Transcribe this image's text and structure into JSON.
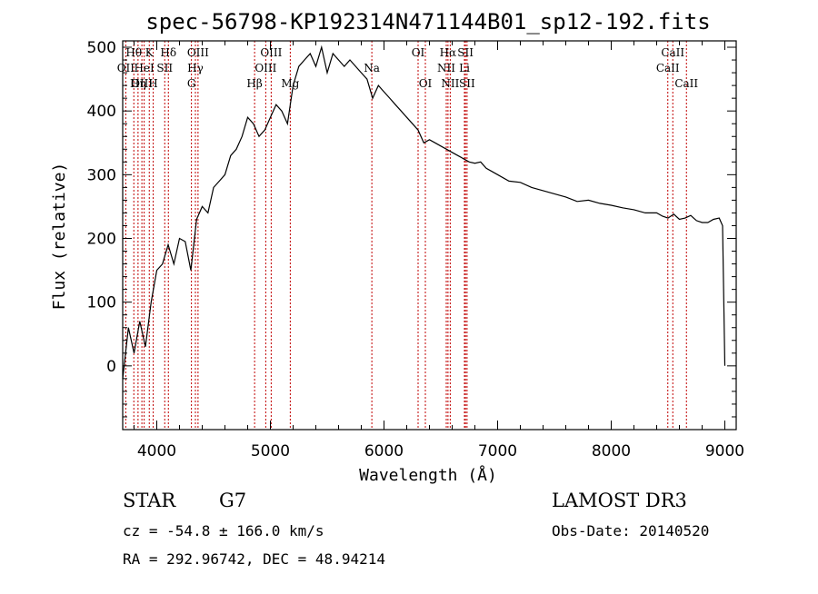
{
  "chart_data": {
    "type": "line",
    "title": "spec-56798-KP192314N471144B01_sp12-192.fits",
    "xlabel": "Wavelength (Å)",
    "ylabel": "Flux (relative)",
    "xlim": [
      3700,
      9100
    ],
    "ylim": [
      -100,
      510
    ],
    "x_ticks": [
      4000,
      5000,
      6000,
      7000,
      8000,
      9000
    ],
    "y_ticks": [
      0,
      100,
      200,
      300,
      400,
      500
    ],
    "grid": false,
    "series": [
      {
        "x": [
          3700,
          3750,
          3800,
          3850,
          3900,
          3950,
          4000,
          4050,
          4100,
          4150,
          4200,
          4250,
          4300,
          4350,
          4400,
          4450,
          4500,
          4550,
          4600,
          4650,
          4700,
          4750,
          4800,
          4850,
          4900,
          4950,
          5000,
          5050,
          5100,
          5150,
          5200,
          5250,
          5300,
          5350,
          5400,
          5450,
          5500,
          5550,
          5600,
          5650,
          5700,
          5750,
          5800,
          5850,
          5900,
          5950,
          6000,
          6050,
          6100,
          6150,
          6200,
          6250,
          6300,
          6350,
          6400,
          6450,
          6500,
          6550,
          6600,
          6650,
          6700,
          6750,
          6800,
          6850,
          6900,
          6950,
          7000,
          7100,
          7200,
          7300,
          7400,
          7500,
          7600,
          7700,
          7800,
          7900,
          8000,
          8100,
          8200,
          8300,
          8400,
          8450,
          8500,
          8550,
          8600,
          8650,
          8700,
          8750,
          8800,
          8850,
          8900,
          8950,
          8980,
          9000
        ],
        "y": [
          -20,
          60,
          20,
          70,
          30,
          100,
          150,
          160,
          190,
          160,
          200,
          195,
          150,
          230,
          250,
          240,
          280,
          290,
          300,
          330,
          340,
          360,
          390,
          380,
          360,
          370,
          390,
          410,
          400,
          380,
          440,
          470,
          480,
          490,
          470,
          500,
          460,
          490,
          480,
          470,
          480,
          470,
          460,
          450,
          420,
          440,
          430,
          420,
          410,
          400,
          390,
          380,
          370,
          350,
          355,
          350,
          345,
          340,
          335,
          330,
          325,
          320,
          318,
          320,
          310,
          305,
          300,
          290,
          288,
          280,
          275,
          270,
          265,
          258,
          260,
          255,
          252,
          248,
          245,
          240,
          240,
          235,
          232,
          238,
          230,
          232,
          236,
          228,
          225,
          225,
          230,
          232,
          220,
          0
        ]
      }
    ],
    "spectral_lines": [
      {
        "label": "Hθ",
        "x": 3798,
        "row": 1
      },
      {
        "label": "OII",
        "x": 3727,
        "row": 2
      },
      {
        "label": "OIII",
        "x": 3869,
        "row": 3
      },
      {
        "label": "K",
        "x": 3934,
        "row": 1
      },
      {
        "label": "HeI",
        "x": 3889,
        "row": 2
      },
      {
        "label": "Hη",
        "x": 3835,
        "row": 3
      },
      {
        "label": "SII",
        "x": 4070,
        "row": 2
      },
      {
        "label": "H",
        "x": 3968,
        "row": 3
      },
      {
        "label": "Hδ",
        "x": 4102,
        "row": 1
      },
      {
        "label": "OIII",
        "x": 4363,
        "row": 1
      },
      {
        "label": "Hγ",
        "x": 4340,
        "row": 2
      },
      {
        "label": "G",
        "x": 4305,
        "row": 3
      },
      {
        "label": "Hβ",
        "x": 4861,
        "row": 3
      },
      {
        "label": "OIII",
        "x": 5007,
        "row": 1
      },
      {
        "label": "OIII",
        "x": 4959,
        "row": 2
      },
      {
        "label": "Mg",
        "x": 5175,
        "row": 3
      },
      {
        "label": "Na",
        "x": 5893,
        "row": 2
      },
      {
        "label": "OI",
        "x": 6300,
        "row": 1
      },
      {
        "label": "OI",
        "x": 6364,
        "row": 3
      },
      {
        "label": "Hα",
        "x": 6563,
        "row": 1
      },
      {
        "label": "NII",
        "x": 6548,
        "row": 2
      },
      {
        "label": "NII",
        "x": 6583,
        "row": 3
      },
      {
        "label": "SII",
        "x": 6717,
        "row": 1
      },
      {
        "label": "Li",
        "x": 6708,
        "row": 2
      },
      {
        "label": "SII",
        "x": 6731,
        "row": 3
      },
      {
        "label": "CaII",
        "x": 8542,
        "row": 1
      },
      {
        "label": "CaII",
        "x": 8498,
        "row": 2
      },
      {
        "label": "CaII",
        "x": 8662,
        "row": 3
      }
    ]
  },
  "info": {
    "object_class": "STAR",
    "subclass": "G7",
    "survey": "LAMOST DR3",
    "cz": "cz = -54.8 ± 166.0 km/s",
    "obs_date": "Obs-Date: 20140520",
    "coords": "RA = 292.96742, DEC =  48.94214"
  },
  "colors": {
    "spectrum": "#000000",
    "line_markers": "#c00000"
  }
}
